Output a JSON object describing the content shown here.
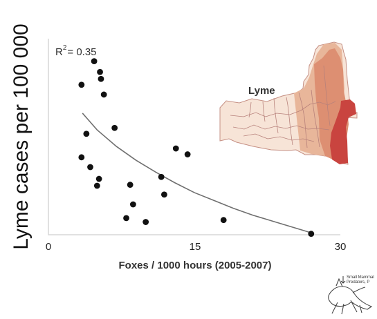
{
  "chart_data": {
    "type": "scatter",
    "ylabel": "Lyme cases per 100 000",
    "xlabel": "Foxes / 1000 hours (2005-2007)",
    "xlim": [
      0,
      30
    ],
    "x_ticks": [
      0,
      15,
      30
    ],
    "x_tick_labels": [
      "0",
      "15",
      "30"
    ],
    "ylim": [
      0,
      1
    ],
    "annotation": {
      "base": "R",
      "superscript": "2",
      "text": "= 0.35"
    },
    "series": [
      {
        "values": [
          {
            "x": 4.7,
            "y": 0.885
          },
          {
            "x": 5.3,
            "y": 0.83
          },
          {
            "x": 5.4,
            "y": 0.795
          },
          {
            "x": 3.4,
            "y": 0.765
          },
          {
            "x": 5.7,
            "y": 0.715
          },
          {
            "x": 6.8,
            "y": 0.545
          },
          {
            "x": 3.9,
            "y": 0.515
          },
          {
            "x": 13.1,
            "y": 0.44
          },
          {
            "x": 14.3,
            "y": 0.41
          },
          {
            "x": 3.4,
            "y": 0.395
          },
          {
            "x": 4.3,
            "y": 0.345
          },
          {
            "x": 5.2,
            "y": 0.285
          },
          {
            "x": 11.6,
            "y": 0.295
          },
          {
            "x": 8.4,
            "y": 0.255
          },
          {
            "x": 5.0,
            "y": 0.25
          },
          {
            "x": 11.9,
            "y": 0.205
          },
          {
            "x": 8.7,
            "y": 0.155
          },
          {
            "x": 8.0,
            "y": 0.085
          },
          {
            "x": 10.0,
            "y": 0.065
          },
          {
            "x": 18.0,
            "y": 0.075
          },
          {
            "x": 27.0,
            "y": 0.005
          }
        ]
      }
    ],
    "trend": {
      "type": "power-decay",
      "points": [
        {
          "x": 3.5,
          "y": 0.62
        },
        {
          "x": 5.0,
          "y": 0.535
        },
        {
          "x": 7.0,
          "y": 0.45
        },
        {
          "x": 9.0,
          "y": 0.38
        },
        {
          "x": 11.0,
          "y": 0.32
        },
        {
          "x": 13.0,
          "y": 0.265
        },
        {
          "x": 15.0,
          "y": 0.215
        },
        {
          "x": 17.0,
          "y": 0.175
        },
        {
          "x": 19.0,
          "y": 0.135
        },
        {
          "x": 21.0,
          "y": 0.1
        },
        {
          "x": 23.0,
          "y": 0.07
        },
        {
          "x": 25.0,
          "y": 0.04
        },
        {
          "x": 27.0,
          "y": 0.01
        }
      ]
    },
    "grid": false
  },
  "map_inset": {
    "label": "Lyme",
    "base_color": "#f7e4d7",
    "light_color": "#e8b69a",
    "mid_color": "#dd8f72",
    "dark_color": "#c9443f",
    "outline_color": "#c58f83"
  },
  "predator_caption": {
    "line1": "Small Mammal",
    "line2": "Predators, P"
  }
}
